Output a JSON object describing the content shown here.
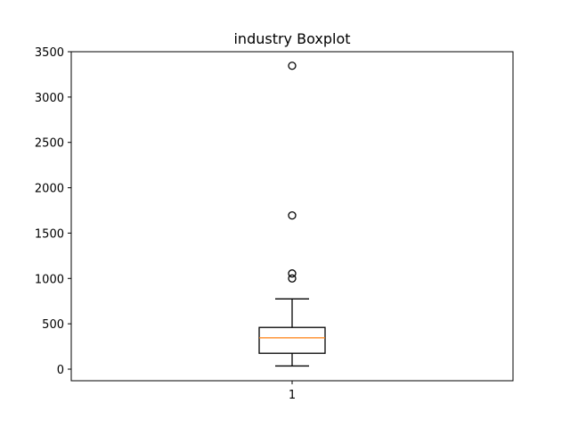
{
  "chart_data": {
    "type": "boxplot",
    "title": "industry Boxplot",
    "xlabel": "",
    "ylabel": "",
    "categories": [
      "1"
    ],
    "ylim": [
      -125,
      3500
    ],
    "yticks": [
      0,
      500,
      1000,
      1500,
      2000,
      2500,
      3000,
      3500
    ],
    "grid": false,
    "boxes": [
      {
        "label": "1",
        "whisker_low": 35,
        "q1": 175,
        "median": 345,
        "q3": 460,
        "whisker_high": 775,
        "outliers": [
          1000,
          1055,
          1695,
          3345
        ]
      }
    ],
    "colors": {
      "box": "#000000",
      "median": "#ff7f0e",
      "whisker": "#000000",
      "flier": "#000000"
    }
  }
}
